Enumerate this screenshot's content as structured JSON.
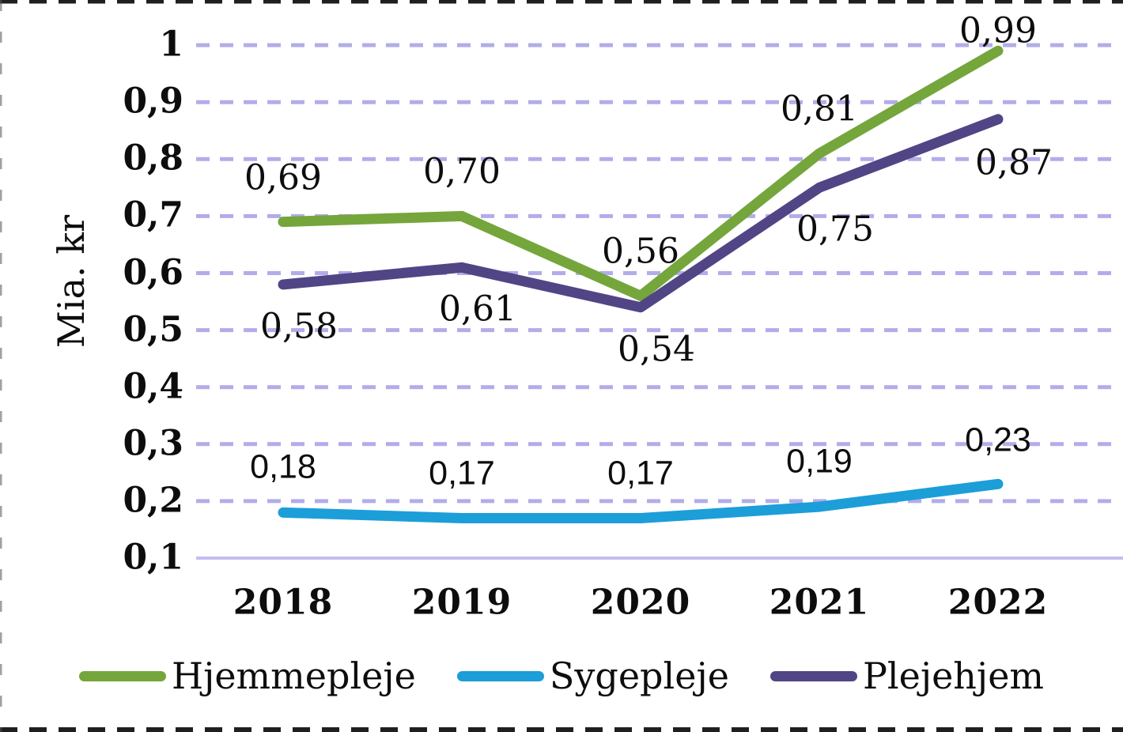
{
  "figure": {
    "background_color": "#ffffff",
    "crop_border_style": "dashed",
    "crop_border_color": "#1f1f1f"
  },
  "chart_data": {
    "type": "line",
    "title": "",
    "xlabel": "",
    "ylabel": "Mia. kr",
    "categories": [
      "2018",
      "2019",
      "2020",
      "2021",
      "2022"
    ],
    "series": [
      {
        "name": "Hjemmepleje",
        "color": "#74A63C",
        "values": [
          0.69,
          0.7,
          0.56,
          0.81,
          0.99
        ],
        "point_labels": [
          "0,69",
          "0,70",
          "0,56",
          "0,81",
          "0,99"
        ]
      },
      {
        "name": "Sygepleje",
        "color": "#1C9ED9",
        "values": [
          0.18,
          0.17,
          0.17,
          0.19,
          0.23
        ],
        "point_labels": [
          "0,18",
          "0,17",
          "0,17",
          "0,19",
          "0,23"
        ]
      },
      {
        "name": "Plejehjem",
        "color": "#514586",
        "values": [
          0.58,
          0.61,
          0.54,
          0.75,
          0.87
        ],
        "point_labels": [
          "0,58",
          "0,61",
          "0,54",
          "0,75",
          "0,87"
        ]
      }
    ],
    "yticks": [
      {
        "value": 1.0,
        "label": "1"
      },
      {
        "value": 0.9,
        "label": "0,9"
      },
      {
        "value": 0.8,
        "label": "0,8"
      },
      {
        "value": 0.7,
        "label": "0,7"
      },
      {
        "value": 0.6,
        "label": "0,6"
      },
      {
        "value": 0.5,
        "label": "0,5"
      },
      {
        "value": 0.4,
        "label": "0,4"
      },
      {
        "value": 0.3,
        "label": "0,3"
      },
      {
        "value": 0.2,
        "label": "0,2"
      },
      {
        "value": 0.1,
        "label": "0,1"
      }
    ],
    "ylim": [
      0.1,
      1.0
    ],
    "grid": "horizontal-dashed",
    "gridline_color": "#B2ADE9",
    "baseline_color": "#C4BDF0",
    "legend_position": "bottom",
    "legend": [
      "Hjemmepleje",
      "Sygepleje",
      "Plejehjem"
    ]
  }
}
